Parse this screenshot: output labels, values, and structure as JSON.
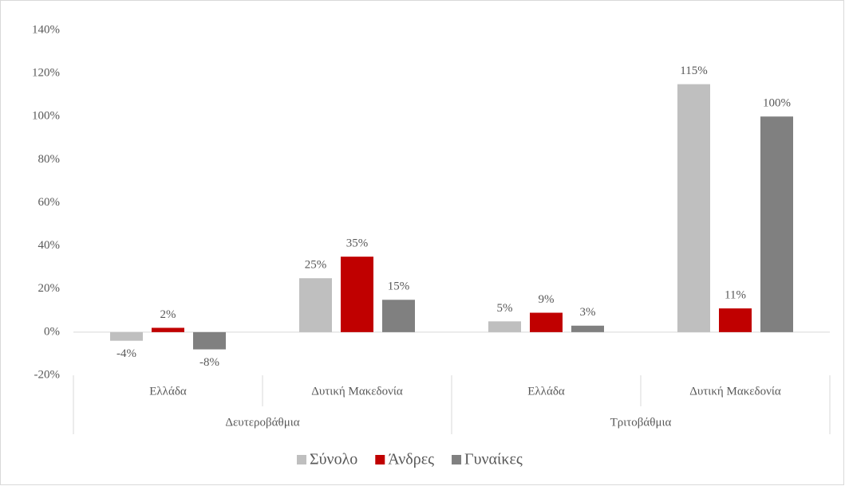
{
  "chart_data": {
    "type": "bar",
    "groups": [
      {
        "name": "Δευτεροβάθμια",
        "categories": [
          "Ελλάδα",
          "Δυτική Μακεδονία"
        ]
      },
      {
        "name": "Τριτοβάθμια",
        "categories": [
          "Ελλάδα",
          "Δυτική Μακεδονία"
        ]
      }
    ],
    "series": [
      {
        "name": "Σύνολο",
        "color": "#bfbfbf",
        "values": [
          -4,
          25,
          5,
          115
        ],
        "value_labels": [
          "-4%",
          "25%",
          "5%",
          "115%"
        ]
      },
      {
        "name": "Άνδρες",
        "color": "#c00000",
        "values": [
          2,
          35,
          9,
          11
        ],
        "value_labels": [
          "2%",
          "35%",
          "9%",
          "11%"
        ]
      },
      {
        "name": "Γυναίκες",
        "color": "#808080",
        "values": [
          -8,
          15,
          3,
          100
        ],
        "value_labels": [
          "-8%",
          "15%",
          "3%",
          "100%"
        ]
      }
    ],
    "ylim": [
      -20,
      140
    ],
    "yticks": [
      {
        "value": -20,
        "label": "-20%"
      },
      {
        "value": 0,
        "label": "0%"
      },
      {
        "value": 20,
        "label": "20%"
      },
      {
        "value": 40,
        "label": "40%"
      },
      {
        "value": 60,
        "label": "60%"
      },
      {
        "value": 80,
        "label": "80%"
      },
      {
        "value": 100,
        "label": "100%"
      },
      {
        "value": 120,
        "label": "120%"
      },
      {
        "value": 140,
        "label": "140%"
      }
    ],
    "grid": false,
    "legend": "bottom"
  }
}
